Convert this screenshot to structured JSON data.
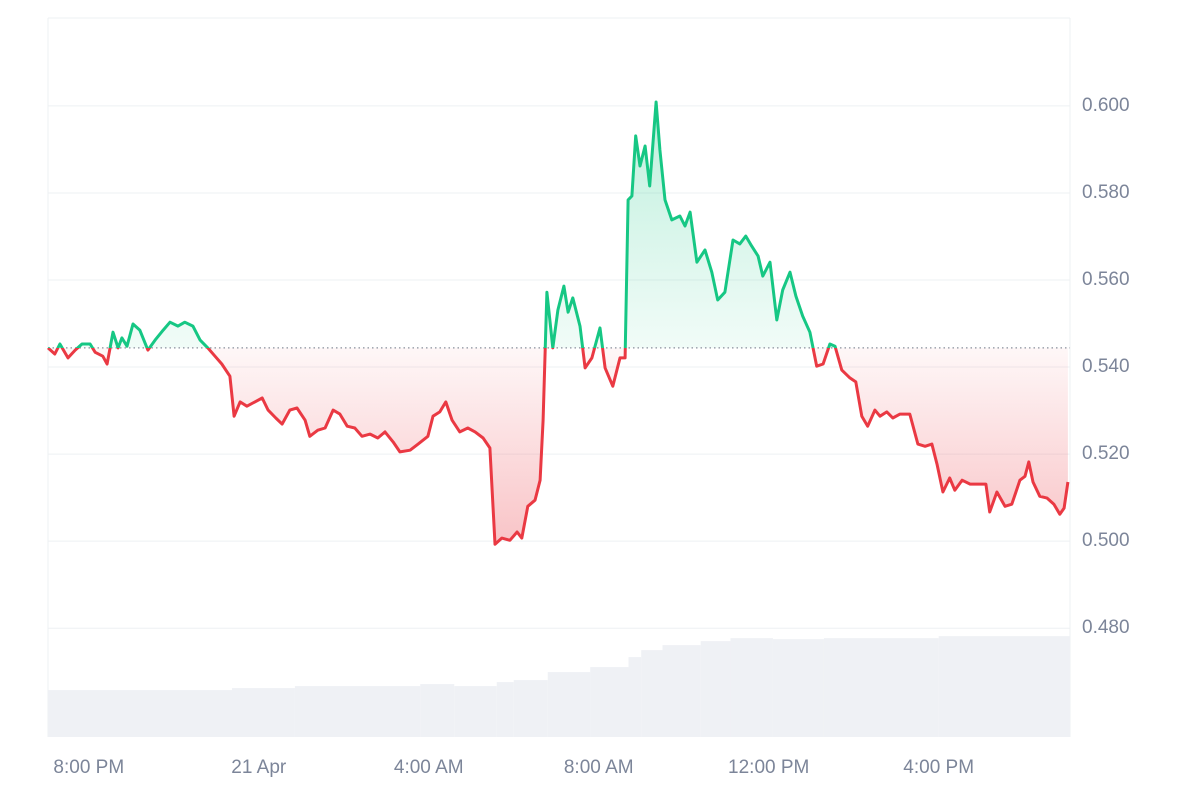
{
  "chart_data": {
    "type": "line",
    "x": [
      19.04,
      19.2,
      19.32,
      19.51,
      19.68,
      19.84,
      20.03,
      20.15,
      20.33,
      20.43,
      20.57,
      20.69,
      20.78,
      20.9,
      21.04,
      21.2,
      21.39,
      21.56,
      21.75,
      21.91,
      22.1,
      22.26,
      22.45,
      22.62,
      22.8,
      22.97,
      23.13,
      23.32,
      23.42,
      23.56,
      23.72,
      23.91,
      24.08,
      24.22,
      24.4,
      24.55,
      24.73,
      24.9,
      25.09,
      25.2,
      25.39,
      25.56,
      25.75,
      25.91,
      26.08,
      26.26,
      26.43,
      26.62,
      26.8,
      26.97,
      27.16,
      27.32,
      27.56,
      27.75,
      27.98,
      28.1,
      28.26,
      28.4,
      28.55,
      28.73,
      28.92,
      29.09,
      29.28,
      29.44,
      29.56,
      29.72,
      29.91,
      30.08,
      30.19,
      30.33,
      30.5,
      30.62,
      30.69,
      30.78,
      30.92,
      31.04,
      31.18,
      31.28,
      31.39,
      31.56,
      31.68,
      31.84,
      32.03,
      32.15,
      32.33,
      32.5,
      32.62,
      32.69,
      32.78,
      32.87,
      32.97,
      33.09,
      33.2,
      33.35,
      33.44,
      33.56,
      33.72,
      33.91,
      34.03,
      34.15,
      34.31,
      34.5,
      34.66,
      34.8,
      34.97,
      35.16,
      35.32,
      35.46,
      35.6,
      35.75,
      35.86,
      36.03,
      36.19,
      36.33,
      36.5,
      36.64,
      36.8,
      36.97,
      37.13,
      37.28,
      37.44,
      37.56,
      37.72,
      37.91,
      38.05,
      38.19,
      38.33,
      38.5,
      38.62,
      38.78,
      38.92,
      39.09,
      39.32,
      39.51,
      39.68,
      39.84,
      39.96,
      40.1,
      40.26,
      40.38,
      40.55,
      40.74,
      40.92,
      41.11,
      41.2,
      41.37,
      41.56,
      41.72,
      41.91,
      42.03,
      42.12,
      42.22,
      42.38,
      42.55,
      42.71,
      42.85,
      42.95,
      43.04
    ],
    "values": [
      0.5444,
      0.543,
      0.5453,
      0.5421,
      0.5439,
      0.5453,
      0.5453,
      0.5434,
      0.5425,
      0.5407,
      0.548,
      0.5444,
      0.5467,
      0.5448,
      0.5499,
      0.5485,
      0.5439,
      0.5462,
      0.5485,
      0.5503,
      0.5494,
      0.5503,
      0.5494,
      0.5462,
      0.5444,
      0.5425,
      0.5407,
      0.5379,
      0.5287,
      0.532,
      0.531,
      0.532,
      0.5329,
      0.5301,
      0.5283,
      0.5269,
      0.5301,
      0.5306,
      0.5278,
      0.5241,
      0.5255,
      0.526,
      0.5301,
      0.5292,
      0.5264,
      0.526,
      0.5241,
      0.5246,
      0.5237,
      0.5251,
      0.5228,
      0.5205,
      0.5209,
      0.5223,
      0.5241,
      0.5287,
      0.5297,
      0.532,
      0.5278,
      0.5251,
      0.526,
      0.5251,
      0.5237,
      0.5214,
      0.4993,
      0.5007,
      0.5002,
      0.5021,
      0.5007,
      0.508,
      0.5094,
      0.514,
      0.5278,
      0.5572,
      0.5444,
      0.5531,
      0.5586,
      0.5526,
      0.5559,
      0.5494,
      0.5398,
      0.5421,
      0.549,
      0.5398,
      0.5356,
      0.5421,
      0.5421,
      0.5784,
      0.5793,
      0.5931,
      0.5862,
      0.5908,
      0.5816,
      0.6009,
      0.5899,
      0.5784,
      0.5738,
      0.5747,
      0.5724,
      0.5756,
      0.5641,
      0.5669,
      0.5618,
      0.5554,
      0.5572,
      0.5692,
      0.5683,
      0.5701,
      0.5678,
      0.5655,
      0.5609,
      0.5641,
      0.5508,
      0.5577,
      0.5618,
      0.5563,
      0.5517,
      0.548,
      0.5402,
      0.5407,
      0.5453,
      0.5448,
      0.5393,
      0.5375,
      0.5366,
      0.5287,
      0.5264,
      0.5301,
      0.5287,
      0.5297,
      0.5283,
      0.5292,
      0.5292,
      0.5223,
      0.5218,
      0.5223,
      0.5177,
      0.5113,
      0.5145,
      0.5117,
      0.514,
      0.5131,
      0.5131,
      0.5131,
      0.5067,
      0.5113,
      0.508,
      0.5085,
      0.514,
      0.5149,
      0.5182,
      0.5136,
      0.5103,
      0.5099,
      0.5085,
      0.5062,
      0.5076,
      0.5136
    ],
    "baseline": 0.5444,
    "above_color": "#16c784",
    "below_color": "#ea3943",
    "volume": {
      "x": [
        19.04,
        23.37,
        24.85,
        27.8,
        28.6,
        29.6,
        30.0,
        30.8,
        31.8,
        32.7,
        33.0,
        33.5,
        34.4,
        35.1,
        36.1,
        37.3,
        40.0
      ],
      "values": [
        47,
        49,
        51,
        53,
        51,
        55,
        57,
        65,
        70,
        80,
        87,
        92,
        96,
        99,
        98,
        99,
        101
      ],
      "color": "#eff1f5"
    },
    "xlim": [
      19.04,
      43.09
    ],
    "xticks": [
      {
        "value": 20,
        "label": "8:00 PM"
      },
      {
        "value": 24,
        "label": "21 Apr"
      },
      {
        "value": 28,
        "label": "4:00 AM"
      },
      {
        "value": 32,
        "label": "8:00 AM"
      },
      {
        "value": 36,
        "label": "12:00 PM"
      },
      {
        "value": 40,
        "label": "4:00 PM"
      }
    ],
    "ylim": [
      0.455,
      0.6202
    ],
    "yticks": [
      {
        "value": 0.48,
        "label": "0.480"
      },
      {
        "value": 0.5,
        "label": "0.500"
      },
      {
        "value": 0.52,
        "label": "0.520"
      },
      {
        "value": 0.54,
        "label": "0.540"
      },
      {
        "value": 0.56,
        "label": "0.560"
      },
      {
        "value": 0.58,
        "label": "0.580"
      },
      {
        "value": 0.6,
        "label": "0.600"
      }
    ],
    "y2lim": [
      0,
      720
    ],
    "grid": true
  }
}
